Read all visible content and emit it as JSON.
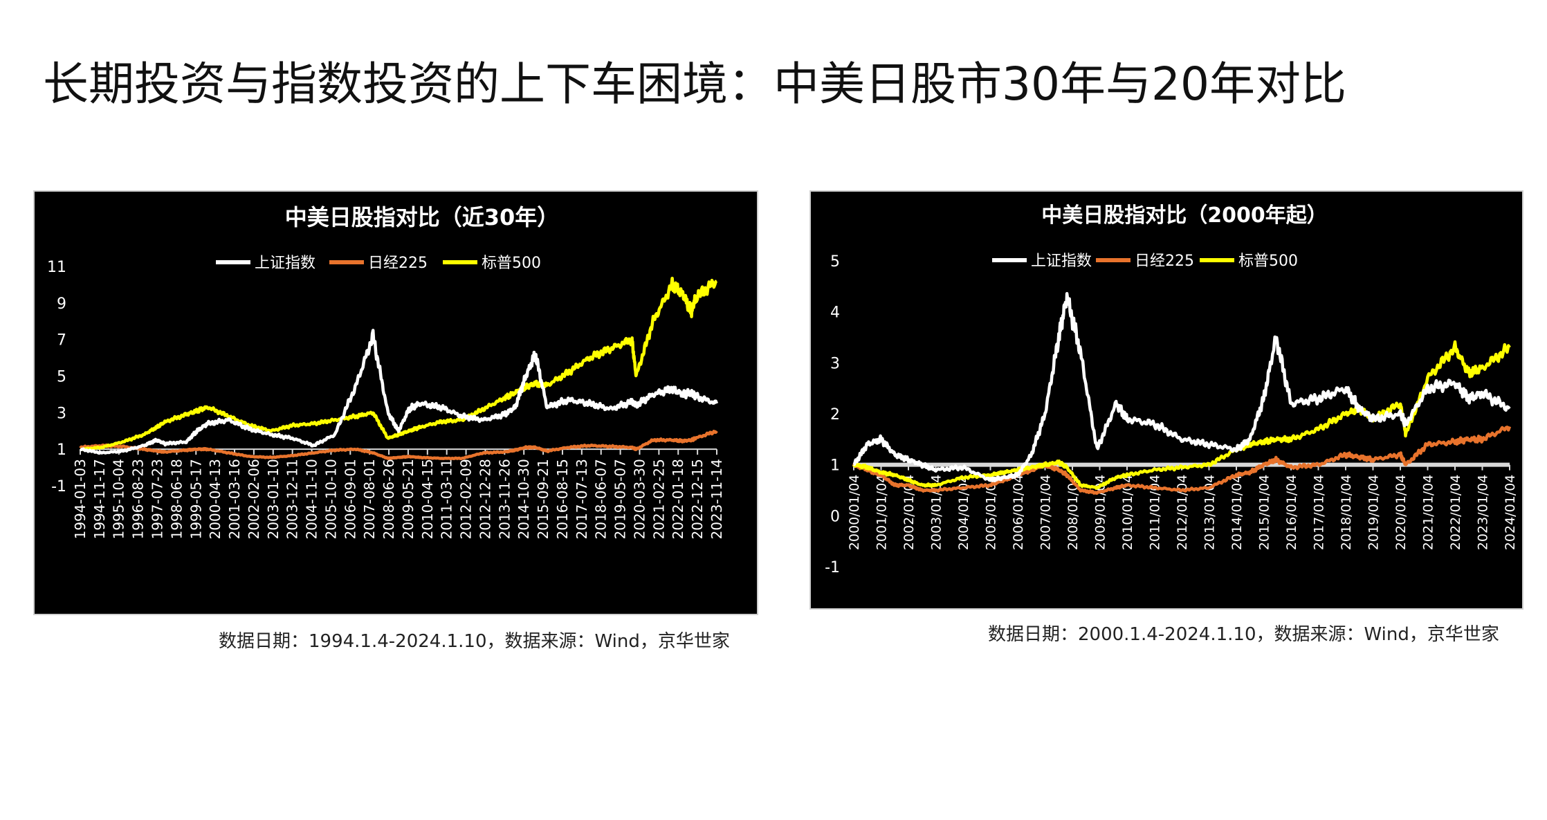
{
  "page": {
    "title": "长期投资与指数投资的上下车困境：中美日股市30年与20年对比"
  },
  "colors": {
    "shanghai": "#ffffff",
    "nikkei": "#e8732c",
    "sp500": "#ffff00",
    "panel_bg": "#000000"
  },
  "chart_data": [
    {
      "type": "line",
      "title": "中美日股指对比（近30年）",
      "legend_position": "top",
      "ylim": [
        -1,
        11
      ],
      "y_ticks": [
        "-1",
        "1",
        "3",
        "5",
        "7",
        "9",
        "11"
      ],
      "x_ticks": [
        "1994-01-03",
        "1994-11-17",
        "1995-10-04",
        "1996-08-23",
        "1997-07-23",
        "1998-06-18",
        "1999-05-17",
        "2000-04-13",
        "2001-03-16",
        "2002-02-06",
        "2003-01-10",
        "2003-12-11",
        "2004-11-10",
        "2005-10-10",
        "2006-09-01",
        "2007-08-01",
        "2008-06-26",
        "2009-05-21",
        "2010-04-15",
        "2011-03-11",
        "2012-02-09",
        "2012-12-28",
        "2013-11-26",
        "2014-10-30",
        "2015-09-21",
        "2016-08-15",
        "2017-07-13",
        "2018-06-07",
        "2019-05-07",
        "2020-03-30",
        "2021-02-25",
        "2022-01-18",
        "2022-12-15",
        "2023-11-14"
      ],
      "x": [
        1994.0,
        1995.0,
        1996.0,
        1997.0,
        1997.6,
        1998.0,
        1999.0,
        1999.5,
        2000.0,
        2001.0,
        2002.0,
        2003.0,
        2004.0,
        2005.0,
        2006.0,
        2007.0,
        2007.8,
        2008.5,
        2009.0,
        2009.5,
        2010.0,
        2011.0,
        2012.0,
        2013.0,
        2014.0,
        2014.5,
        2015.0,
        2015.45,
        2016.0,
        2017.0,
        2018.0,
        2019.0,
        2020.0,
        2020.2,
        2021.0,
        2021.9,
        2022.4,
        2022.8,
        2023.0,
        2024.0
      ],
      "series": [
        {
          "name": "上证指数",
          "color": "#ffffff",
          "values": [
            1.0,
            0.8,
            0.9,
            1.2,
            1.5,
            1.3,
            1.4,
            2.0,
            2.4,
            2.6,
            2.1,
            1.8,
            1.6,
            1.2,
            1.8,
            4.5,
            7.2,
            3.0,
            2.0,
            3.2,
            3.5,
            3.3,
            2.8,
            2.6,
            2.9,
            3.3,
            5.0,
            6.2,
            3.3,
            3.7,
            3.5,
            3.2,
            3.6,
            3.4,
            4.0,
            4.3,
            4.0,
            4.1,
            3.9,
            3.5
          ]
        },
        {
          "name": "日经225",
          "color": "#e8732c",
          "values": [
            1.1,
            1.2,
            1.15,
            1.0,
            0.9,
            0.85,
            0.95,
            1.0,
            1.0,
            0.8,
            0.6,
            0.55,
            0.65,
            0.8,
            0.95,
            1.0,
            0.8,
            0.5,
            0.55,
            0.6,
            0.55,
            0.5,
            0.5,
            0.8,
            0.85,
            0.95,
            1.1,
            1.1,
            0.9,
            1.1,
            1.2,
            1.15,
            1.1,
            1.0,
            1.5,
            1.5,
            1.45,
            1.5,
            1.6,
            2.0
          ]
        },
        {
          "name": "标普500",
          "color": "#ffff00",
          "values": [
            1.0,
            1.1,
            1.4,
            1.8,
            2.2,
            2.5,
            2.9,
            3.1,
            3.3,
            2.8,
            2.3,
            2.0,
            2.3,
            2.4,
            2.6,
            2.8,
            3.0,
            1.6,
            1.8,
            2.0,
            2.2,
            2.5,
            2.6,
            3.2,
            3.8,
            4.1,
            4.4,
            4.6,
            4.5,
            5.2,
            6.0,
            6.5,
            7.0,
            5.0,
            8.0,
            10.0,
            9.5,
            8.5,
            9.3,
            10.2
          ]
        }
      ]
    },
    {
      "type": "line",
      "title": "中美日股指对比（2000年起）",
      "legend_position": "top",
      "ylim": [
        -1,
        5
      ],
      "y_ticks": [
        "-1",
        "0",
        "1",
        "2",
        "3",
        "4",
        "5"
      ],
      "x_ticks": [
        "2000/01/04",
        "2001/01/04",
        "2002/01/04",
        "2003/01/04",
        "2004/01/04",
        "2005/01/04",
        "2006/01/04",
        "2007/01/04",
        "2008/01/04",
        "2009/01/04",
        "2010/01/04",
        "2011/01/04",
        "2012/01/04",
        "2013/01/04",
        "2014/01/04",
        "2015/01/04",
        "2016/01/04",
        "2017/01/04",
        "2018/01/04",
        "2019/01/04",
        "2020/01/04",
        "2021/01/04",
        "2022/01/04",
        "2023/01/04",
        "2024/01/04"
      ],
      "x": [
        2000.0,
        2000.5,
        2001.0,
        2001.5,
        2002.0,
        2002.5,
        2003.0,
        2004.0,
        2005.0,
        2005.5,
        2006.0,
        2006.5,
        2007.0,
        2007.5,
        2007.8,
        2008.3,
        2008.9,
        2009.6,
        2010.0,
        2011.0,
        2012.0,
        2013.0,
        2014.0,
        2014.5,
        2015.0,
        2015.45,
        2016.0,
        2017.0,
        2018.0,
        2018.5,
        2019.0,
        2020.0,
        2020.2,
        2021.0,
        2022.0,
        2022.5,
        2023.0,
        2024.0
      ],
      "series": [
        {
          "name": "上证指数",
          "color": "#ffffff",
          "values": [
            1.0,
            1.4,
            1.5,
            1.2,
            1.1,
            1.0,
            0.9,
            0.95,
            0.7,
            0.75,
            0.8,
            1.2,
            2.0,
            3.5,
            4.3,
            3.2,
            1.3,
            2.2,
            1.9,
            1.8,
            1.5,
            1.4,
            1.3,
            1.5,
            2.3,
            3.5,
            2.2,
            2.3,
            2.5,
            2.1,
            1.9,
            2.0,
            1.8,
            2.5,
            2.6,
            2.3,
            2.4,
            2.1
          ]
        },
        {
          "name": "日经225",
          "color": "#e8732c",
          "values": [
            1.0,
            0.9,
            0.8,
            0.6,
            0.6,
            0.5,
            0.5,
            0.55,
            0.6,
            0.7,
            0.8,
            0.9,
            1.0,
            0.9,
            0.8,
            0.5,
            0.45,
            0.55,
            0.6,
            0.55,
            0.5,
            0.55,
            0.8,
            0.85,
            1.0,
            1.1,
            0.95,
            1.0,
            1.2,
            1.15,
            1.1,
            1.2,
            1.0,
            1.4,
            1.45,
            1.5,
            1.5,
            1.75
          ]
        },
        {
          "name": "标普500",
          "color": "#ffff00",
          "values": [
            1.0,
            0.95,
            0.85,
            0.8,
            0.7,
            0.6,
            0.6,
            0.75,
            0.8,
            0.85,
            0.9,
            0.95,
            1.0,
            1.05,
            0.95,
            0.6,
            0.55,
            0.75,
            0.8,
            0.9,
            0.95,
            1.0,
            1.3,
            1.4,
            1.45,
            1.5,
            1.5,
            1.7,
            2.0,
            2.1,
            1.9,
            2.2,
            1.6,
            2.7,
            3.3,
            2.8,
            2.9,
            3.3
          ]
        }
      ]
    }
  ],
  "sources": {
    "left": "数据日期：1994.1.4-2024.1.10，数据来源：Wind，京华世家",
    "right": "数据日期：2000.1.4-2024.1.10，数据来源：Wind，京华世家"
  }
}
